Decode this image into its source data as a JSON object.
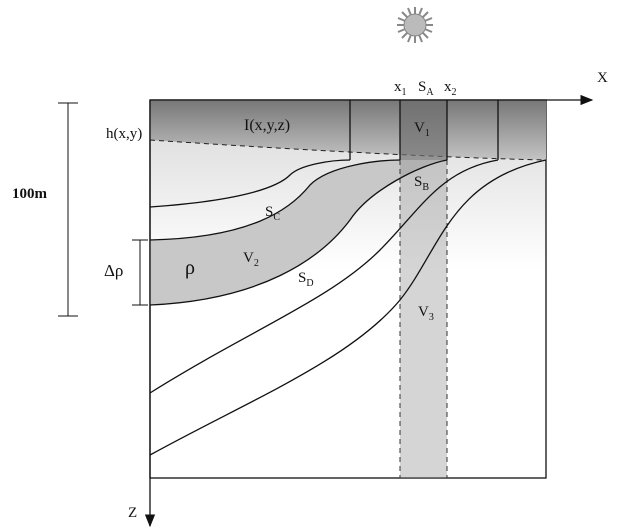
{
  "axes": {
    "x": "X",
    "z": "Z"
  },
  "scale": {
    "length": "100m",
    "density_step": "Δρ"
  },
  "labels": {
    "x1": {
      "base": "x",
      "sub": "1"
    },
    "sa": {
      "base": "S",
      "sub": "A"
    },
    "x2": {
      "base": "x",
      "sub": "2"
    },
    "intensity": "I(x,y,z)",
    "height": "h(x,y)",
    "v1": {
      "base": "V",
      "sub": "1"
    },
    "sb": {
      "base": "S",
      "sub": "B"
    },
    "sc": {
      "base": "S",
      "sub": "C"
    },
    "v2": {
      "base": "V",
      "sub": "2"
    },
    "sd": {
      "base": "S",
      "sub": "D"
    },
    "v3": {
      "base": "V",
      "sub": "3"
    },
    "rho": "ρ"
  }
}
